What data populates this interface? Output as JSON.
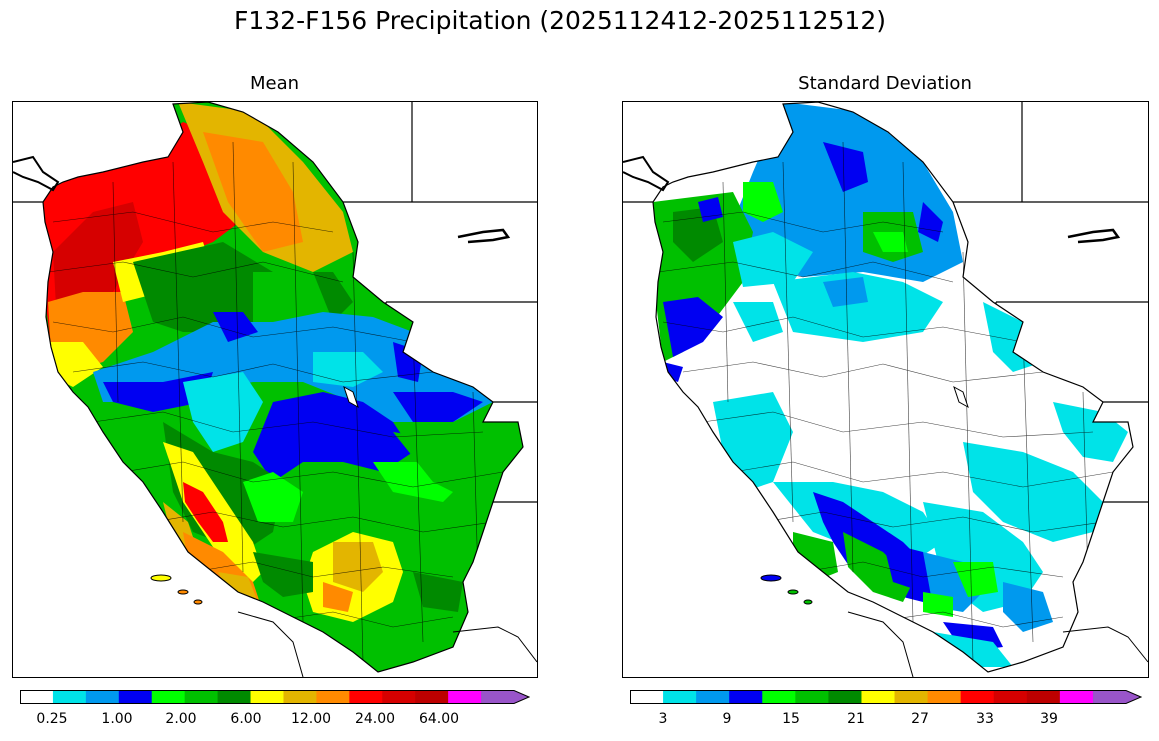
{
  "figure": {
    "title": "F132-F156 Precipitation (2025112412-2025112512)"
  },
  "panels": [
    {
      "title": "Mean",
      "colorbar": {
        "colors": [
          "#ffffff",
          "#00e3e8",
          "#0099ee",
          "#0000f2",
          "#00ff00",
          "#00c000",
          "#008a00",
          "#ffff00",
          "#e3b500",
          "#ff8a00",
          "#ff0000",
          "#d60000",
          "#bd0000",
          "#ff00ff",
          "#9955c9"
        ],
        "tick_labels": [
          "0.25",
          "1.00",
          "2.00",
          "6.00",
          "12.00",
          "24.00",
          "64.00"
        ]
      }
    },
    {
      "title": "Standard Deviation",
      "colorbar": {
        "colors": [
          "#ffffff",
          "#00e3e8",
          "#0099ee",
          "#0000f2",
          "#00ff00",
          "#00c000",
          "#008a00",
          "#ffff00",
          "#e3b500",
          "#ff8a00",
          "#ff0000",
          "#d60000",
          "#bd0000",
          "#ff00ff",
          "#9955c9"
        ],
        "tick_labels": [
          "3",
          "9",
          "15",
          "21",
          "27",
          "33",
          "39"
        ]
      }
    }
  ]
}
